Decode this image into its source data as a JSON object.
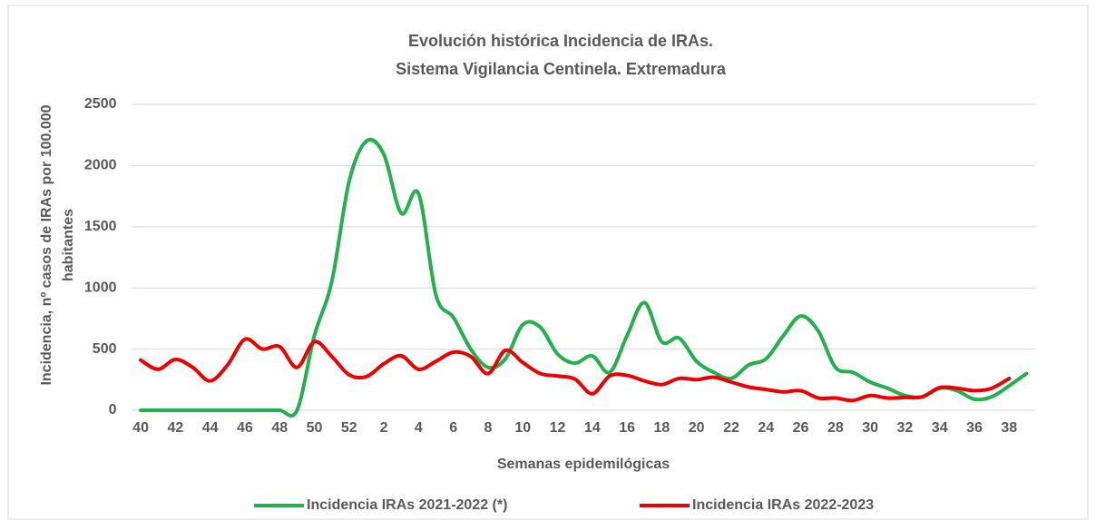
{
  "chart_data": {
    "type": "line",
    "title": "Evolución histórica Incidencia de IRAs.",
    "subtitle": "Sistema Vigilancia Centinela. Extremadura",
    "x_label": "Semanas epidemilógicas",
    "y_label": [
      "Incidencia, nº casos de IRAs por 100.000",
      "habitantes"
    ],
    "categories": [
      "40",
      null,
      "42",
      null,
      "44",
      null,
      "46",
      null,
      "48",
      null,
      "50",
      null,
      "52",
      null,
      "2",
      null,
      "4",
      null,
      "6",
      null,
      "8",
      null,
      "10",
      null,
      "12",
      null,
      "14",
      null,
      "16",
      null,
      "18",
      null,
      "20",
      null,
      "22",
      null,
      "24",
      null,
      "26",
      null,
      "28",
      null,
      "30",
      null,
      "32",
      null,
      "34",
      null,
      "36",
      null,
      "38",
      null
    ],
    "series": [
      {
        "name": "Incidencia IRAs 2021-2022 (*)",
        "color": "#22b14c",
        "values": [
          0,
          0,
          0,
          0,
          0,
          0,
          0,
          0,
          0,
          0,
          610,
          1050,
          1870,
          2200,
          2090,
          1610,
          1770,
          940,
          760,
          500,
          350,
          420,
          700,
          680,
          460,
          385,
          445,
          310,
          610,
          880,
          560,
          590,
          400,
          310,
          260,
          370,
          420,
          610,
          770,
          650,
          350,
          310,
          230,
          180,
          120,
          110,
          180,
          160,
          90,
          110,
          200,
          300
        ]
      },
      {
        "name": "Incidencia IRAs 2022-2023",
        "color": "#ee0000",
        "values": [
          410,
          335,
          415,
          350,
          240,
          370,
          580,
          500,
          520,
          350,
          560,
          440,
          290,
          275,
          380,
          445,
          335,
          400,
          475,
          440,
          300,
          490,
          390,
          300,
          280,
          255,
          135,
          280,
          285,
          240,
          210,
          260,
          250,
          270,
          230,
          190,
          170,
          150,
          160,
          100,
          100,
          80,
          120,
          100,
          105,
          110,
          185,
          180,
          160,
          180,
          260,
          null
        ]
      }
    ],
    "ylim": [
      0,
      2500
    ],
    "yticks": [
      0,
      500,
      1000,
      1500,
      2000,
      2500
    ],
    "grid": true,
    "legend": "bottom"
  }
}
